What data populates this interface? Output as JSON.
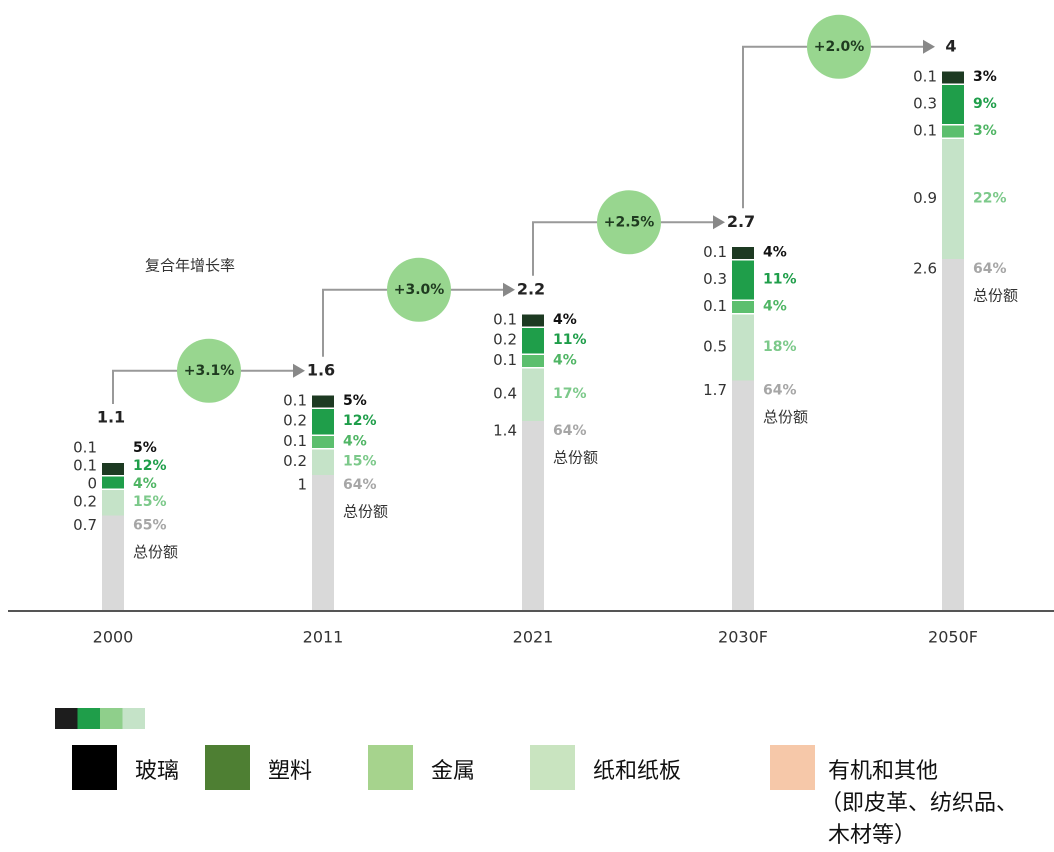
{
  "chart_data": {
    "type": "stacked-bar",
    "categories": [
      "2000",
      "2011",
      "2021",
      "2030F",
      "2050F"
    ],
    "totals": [
      1.1,
      1.6,
      2.2,
      2.7,
      4.0
    ],
    "growth_title": "复合年增长率",
    "growth_labels": [
      "+3.1%",
      "+3.0%",
      "+2.5%",
      "+2.0%"
    ],
    "growth_color": "#98d68f",
    "series": [
      {
        "name": "总份额",
        "color": "#d9d9d9",
        "label_color": "#a6a6a6",
        "values": [
          0.7,
          1.0,
          1.4,
          1.7,
          2.6
        ],
        "share_labels": [
          "65%",
          "64%",
          "64%",
          "64%",
          "64%"
        ]
      },
      {
        "color": "#c5e3c8",
        "label_color": "#7cc98a",
        "values": [
          0.2,
          0.2,
          0.4,
          0.5,
          0.9
        ],
        "share_labels": [
          "15%",
          "15%",
          "17%",
          "18%",
          "22%"
        ]
      },
      {
        "color": "#5cbf6e",
        "label_color": "#4fb564",
        "values": [
          0.0,
          0.1,
          0.1,
          0.1,
          0.1
        ],
        "share_labels": [
          "4%",
          "4%",
          "4%",
          "4%",
          "3%"
        ]
      },
      {
        "color": "#1f9e4a",
        "label_color": "#1f9e4a",
        "values": [
          0.1,
          0.2,
          0.2,
          0.3,
          0.3
        ],
        "share_labels": [
          "12%",
          "12%",
          "11%",
          "11%",
          "9%"
        ]
      },
      {
        "color": "#1d3a22",
        "label_color": "#111111",
        "values": [
          0.1,
          0.1,
          0.1,
          0.1,
          0.1
        ],
        "share_labels": [
          "5%",
          "5%",
          "4%",
          "4%",
          "3%"
        ]
      }
    ],
    "legend_strip": [
      "#1d1d1d",
      "#1f9e4a",
      "#8fcf8b",
      "#c5e3c8"
    ],
    "legend": [
      {
        "lines": [
          "玻璃"
        ],
        "color": "#000000"
      },
      {
        "lines": [
          "塑料"
        ],
        "color": "#4e7f33"
      },
      {
        "lines": [
          "金属"
        ],
        "color": "#a6d38d"
      },
      {
        "lines": [
          "纸和纸板"
        ],
        "color": "#c9e4c0"
      },
      {
        "lines": [
          "有机和其他",
          "（即皮革、纺织品、",
          "木材等）"
        ],
        "color": "#f6c8a9"
      }
    ]
  }
}
